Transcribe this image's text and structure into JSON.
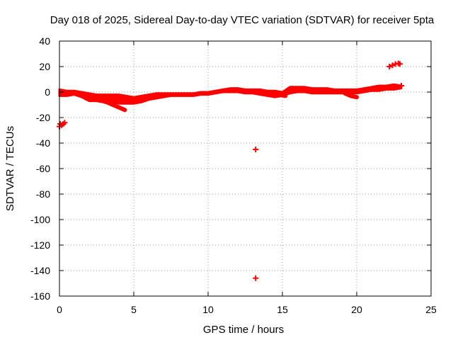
{
  "chart_data": {
    "type": "scatter",
    "title": "Day 018 of 2025, Sidereal Day-to-day VTEC variation (SDTVAR) for receiver 5pta",
    "xlabel": "GPS time / hours",
    "ylabel": "SDTVAR / TECUs",
    "xlim": [
      0,
      25
    ],
    "ylim": [
      -160,
      40
    ],
    "xticks": [
      "0",
      "5",
      "10",
      "15",
      "20",
      "25"
    ],
    "yticks": [
      "40",
      "20",
      "0",
      "-20",
      "-40",
      "-60",
      "-80",
      "-100",
      "-120",
      "-140",
      "-160"
    ],
    "grid": true,
    "series_color": "#ff0000",
    "band": {
      "x": [
        0,
        0.5,
        1.0,
        1.5,
        2.0,
        2.5,
        3.0,
        3.5,
        4.0,
        4.5,
        5.0,
        5.5,
        6.0,
        6.5,
        7.0,
        7.5,
        8.0,
        8.5,
        9.0,
        9.5,
        10.0,
        10.5,
        11.0,
        11.5,
        12.0,
        12.5,
        13.0,
        13.5,
        14.0,
        14.5,
        15.0,
        15.5,
        16.0,
        16.5,
        17.0,
        17.5,
        18.0,
        18.5,
        19.0,
        19.5,
        20.0,
        20.5,
        21.0,
        21.5,
        22.0,
        22.5,
        23.0
      ],
      "upper": [
        2,
        1,
        1,
        0,
        -1,
        -2,
        -2,
        -2,
        -2,
        -3,
        -4,
        -3,
        -2,
        -1,
        -1,
        -1,
        -1,
        -1,
        -1,
        0,
        0,
        1,
        2,
        3,
        3,
        2,
        2,
        2,
        1,
        1,
        0,
        4,
        4,
        4,
        3,
        3,
        3,
        2,
        2,
        2,
        2,
        3,
        4,
        5,
        5,
        6,
        5
      ],
      "lower": [
        -3,
        -3,
        -2,
        -4,
        -7,
        -7,
        -8,
        -8,
        -9,
        -9,
        -9,
        -8,
        -6,
        -5,
        -4,
        -3,
        -3,
        -3,
        -3,
        -2,
        -2,
        -1,
        0,
        0,
        0,
        -1,
        -1,
        -2,
        -3,
        -4,
        -3,
        -1,
        0,
        0,
        -1,
        -1,
        -1,
        -1,
        -1,
        -1,
        -1,
        0,
        1,
        1,
        2,
        2,
        3
      ]
    },
    "streaks": [
      {
        "x": [
          1.8,
          2.6,
          3.2,
          3.6,
          4.0,
          4.4
        ],
        "y": [
          -5,
          -6,
          -8,
          -10,
          -12,
          -14
        ]
      },
      {
        "x": [
          13.8,
          14.3,
          14.8,
          15.2
        ],
        "y": [
          -1,
          0,
          -2,
          -3
        ]
      },
      {
        "x": [
          19.2,
          19.6,
          20.0
        ],
        "y": [
          -1,
          -3,
          -4
        ]
      }
    ],
    "points": [
      {
        "x": 0.05,
        "y": -25
      },
      {
        "x": 0.15,
        "y": -26
      },
      {
        "x": 0.25,
        "y": -25
      },
      {
        "x": 0.35,
        "y": -24
      },
      {
        "x": 0.0,
        "y": -27
      },
      {
        "x": 13.2,
        "y": -45
      },
      {
        "x": 13.2,
        "y": -146
      },
      {
        "x": 22.2,
        "y": 20
      },
      {
        "x": 22.4,
        "y": 21
      },
      {
        "x": 22.6,
        "y": 22
      },
      {
        "x": 22.8,
        "y": 22.5
      },
      {
        "x": 22.9,
        "y": 22
      },
      {
        "x": 23.0,
        "y": 5
      }
    ]
  }
}
